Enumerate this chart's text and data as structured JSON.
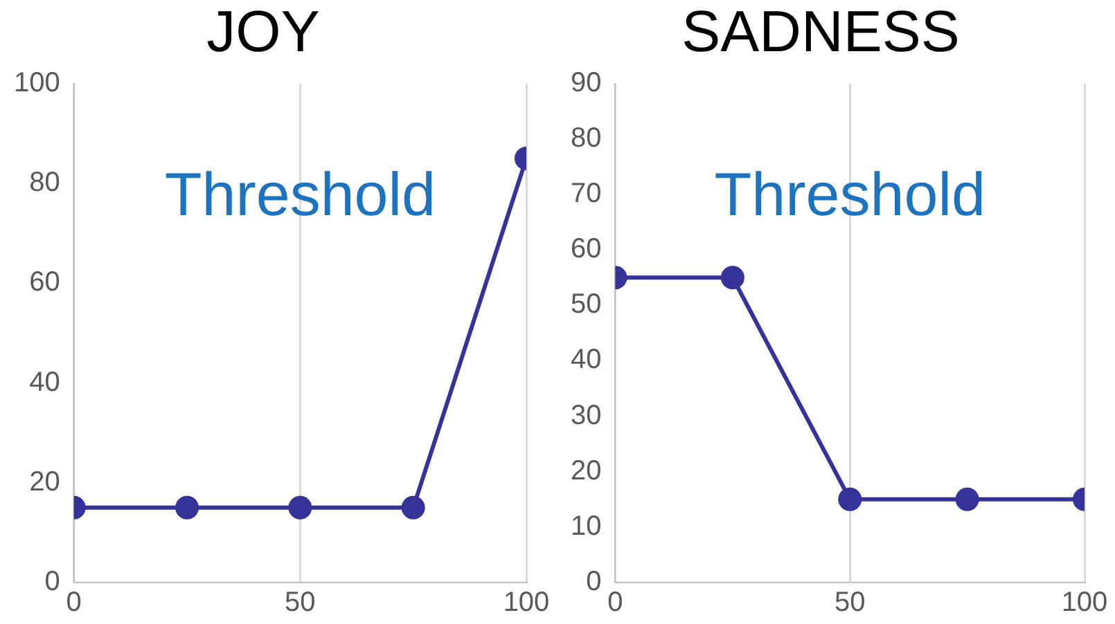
{
  "chart_data": [
    {
      "type": "line",
      "title": "JOY",
      "x": [
        0,
        25,
        50,
        75,
        100
      ],
      "series": [
        {
          "color": "#333399",
          "values": [
            15,
            15,
            15,
            15,
            85
          ]
        }
      ],
      "xlim": [
        0,
        100
      ],
      "xticks": [
        0,
        50,
        100
      ],
      "ylim": [
        0,
        100
      ],
      "yticks": [
        0,
        20,
        40,
        60,
        80,
        100
      ],
      "grid": "x",
      "marker": "circle",
      "line_style": "solid",
      "legend": false,
      "annotations": [
        "Threshold"
      ]
    },
    {
      "type": "line",
      "title": "SADNESS",
      "x": [
        0,
        25,
        50,
        75,
        100
      ],
      "series": [
        {
          "color": "#333399",
          "values": [
            55,
            55,
            15,
            15,
            15
          ]
        }
      ],
      "xlim": [
        0,
        100
      ],
      "xticks": [
        0,
        50,
        100
      ],
      "ylim": [
        0,
        90
      ],
      "yticks": [
        0,
        10,
        20,
        30,
        40,
        50,
        60,
        70,
        80,
        90
      ],
      "grid": "x",
      "marker": "circle",
      "line_style": "solid",
      "legend": false,
      "annotations": [
        "Threshold"
      ]
    }
  ]
}
